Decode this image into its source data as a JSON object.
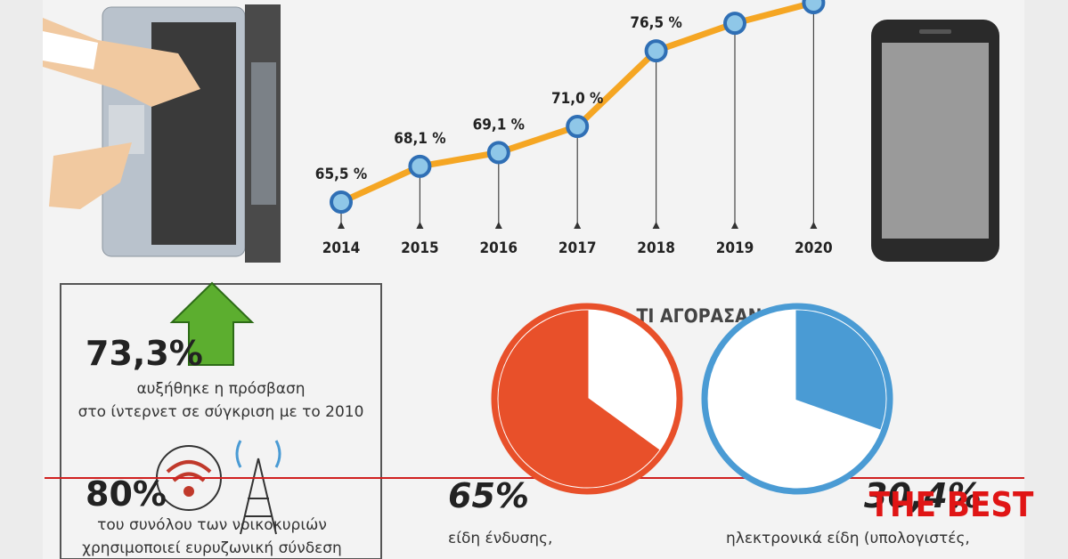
{
  "chart_data": {
    "type": "line",
    "categories": [
      "2014",
      "2015",
      "2016",
      "2017",
      "2018",
      "2019",
      "2020"
    ],
    "values": [
      65.5,
      68.1,
      69.1,
      71.0,
      76.5,
      78.5,
      80.0
    ],
    "value_labels": [
      "65,5 %",
      "68,1 %",
      "69,1 %",
      "71,0 %",
      "76,5 %",
      null,
      null
    ],
    "color": "#f5a623",
    "marker_color": "#2f6fb5"
  },
  "pies": {
    "title": "ΤΙ ΑΓΟΡΑΣΑΝ",
    "items": [
      {
        "label": "65%",
        "value": 65,
        "color": "#e8502a",
        "text": "είδη ένδυσης,"
      },
      {
        "label": "30,4%",
        "value": 30.4,
        "color": "#4a9bd4",
        "text": "ηλεκτρονικά είδη (υπολογιστές,"
      }
    ]
  },
  "stats": [
    {
      "value": "73,3%",
      "lines": [
        "αυξήθηκε η πρόσβαση",
        "στο ίντερνετ σε σύγκριση με το 2010"
      ]
    },
    {
      "value": "80%",
      "lines": [
        "του συνόλου των νοικοκυριών",
        "χρησιμοποιεί ευρυζωνική σύνδεση"
      ]
    }
  ],
  "watermark": "THE BEST"
}
